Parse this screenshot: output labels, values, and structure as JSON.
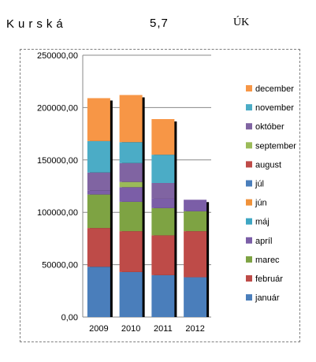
{
  "header": {
    "title": "Kurská",
    "value": "5,7",
    "unit": "ÚK"
  },
  "chart_data": {
    "type": "bar",
    "stacked": true,
    "categories": [
      "2009",
      "2010",
      "2011",
      "2012"
    ],
    "ylim": [
      0,
      250000
    ],
    "yticks": [
      0,
      50000,
      100000,
      150000,
      200000,
      250000
    ],
    "ytick_labels": [
      "0,00",
      "50000,00",
      "100000,00",
      "150000,00",
      "200000,00",
      "250000,00"
    ],
    "grid": true,
    "legend_position": "right",
    "title": "",
    "xlabel": "",
    "ylabel": "",
    "series": [
      {
        "name": "január",
        "color": "#4a7ebb",
        "values": [
          48000,
          43000,
          40000,
          38000
        ]
      },
      {
        "name": "február",
        "color": "#be4b48",
        "values": [
          37000,
          39000,
          38000,
          44000
        ]
      },
      {
        "name": "marec",
        "color": "#7ea343",
        "values": [
          32000,
          28000,
          26000,
          19000
        ]
      },
      {
        "name": "apríl",
        "color": "#7b5ea7",
        "values": [
          4000,
          14000,
          9000,
          11000
        ]
      },
      {
        "name": "máj",
        "color": "#3ea6c3",
        "values": [
          0,
          0,
          0,
          0
        ]
      },
      {
        "name": "jún",
        "color": "#f0923a",
        "values": [
          0,
          0,
          0,
          0
        ]
      },
      {
        "name": "júl",
        "color": "#4a7ebb",
        "values": [
          0,
          0,
          0,
          0
        ]
      },
      {
        "name": "august",
        "color": "#be4b48",
        "values": [
          0,
          0,
          0,
          0
        ]
      },
      {
        "name": "september",
        "color": "#9bbb59",
        "values": [
          0,
          5000,
          0,
          0
        ]
      },
      {
        "name": "október",
        "color": "#8064a2",
        "values": [
          17000,
          18000,
          15000,
          0
        ]
      },
      {
        "name": "november",
        "color": "#4bacc6",
        "values": [
          30000,
          20000,
          27000,
          0
        ]
      },
      {
        "name": "december",
        "color": "#f79646",
        "values": [
          41000,
          45000,
          34000,
          0
        ]
      }
    ],
    "legend_order": [
      "december",
      "november",
      "október",
      "september",
      "august",
      "júl",
      "jún",
      "máj",
      "apríl",
      "marec",
      "február",
      "január"
    ]
  }
}
